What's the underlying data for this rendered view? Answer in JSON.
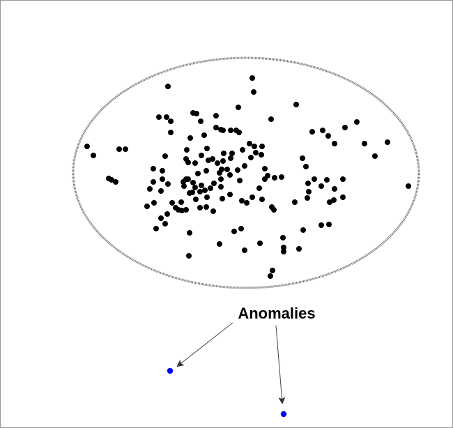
{
  "annotation": {
    "label": "Anomalies"
  },
  "colors": {
    "normal_point": "#000000",
    "anomaly_point": "#0000ff",
    "ellipse": "#666666",
    "arrow": "#444444",
    "text": "#000000"
  }
}
